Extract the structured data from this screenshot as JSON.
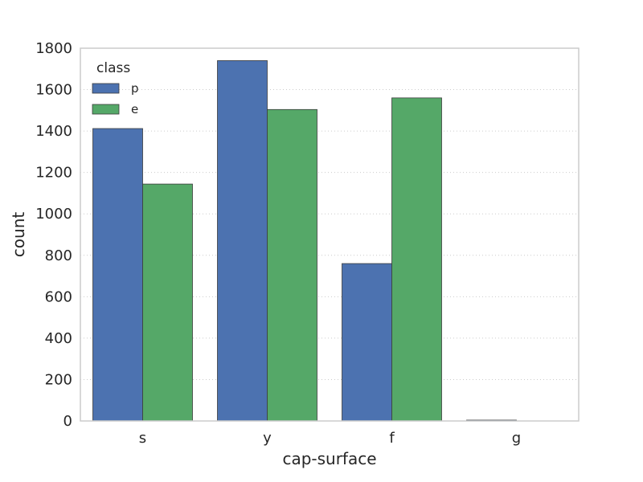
{
  "chart_data": {
    "type": "bar",
    "categories": [
      "s",
      "y",
      "f",
      "g"
    ],
    "series": [
      {
        "name": "p",
        "values": [
          1412,
          1740,
          760,
          4
        ],
        "color": "#4c72b0"
      },
      {
        "name": "e",
        "values": [
          1144,
          1504,
          1560,
          0
        ],
        "color": "#55a868"
      }
    ],
    "xlabel": "cap-surface",
    "ylabel": "count",
    "ylim": [
      0,
      1800
    ],
    "yticks": [
      0,
      200,
      400,
      600,
      800,
      1000,
      1200,
      1400,
      1600,
      1800
    ],
    "grid": "horizontal dotted",
    "legend": {
      "title": "class",
      "placement": "top-left"
    }
  }
}
